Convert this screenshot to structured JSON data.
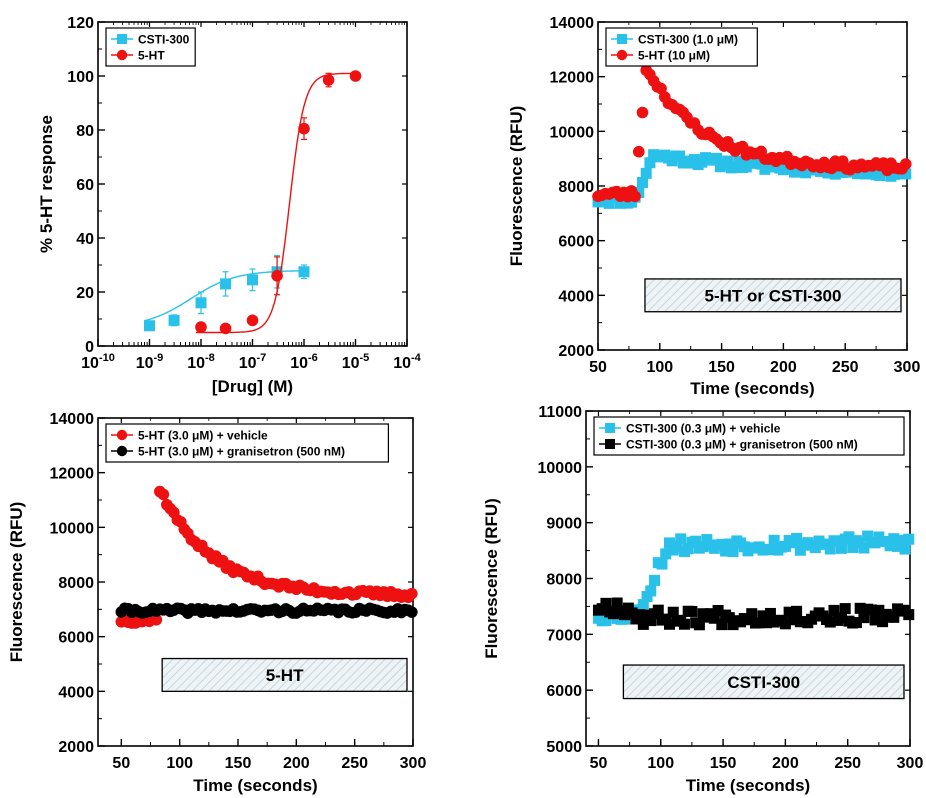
{
  "colors": {
    "cyan": "#29c1ea",
    "red": "#ee1111",
    "black": "#000000",
    "hatch": "#c9d6df"
  },
  "chart_data": [
    {
      "id": "A",
      "type": "scatter",
      "xscale": "log",
      "xlabel": "[Drug] (M)",
      "ylabel": "% 5-HT response",
      "xlim": [
        1e-10,
        0.0001
      ],
      "ylim": [
        0,
        120
      ],
      "xticks": [
        1e-10,
        1e-09,
        1e-08,
        1e-07,
        1e-06,
        1e-05,
        0.0001
      ],
      "xtick_labels": [
        {
          "base": "10",
          "exp": "-10"
        },
        {
          "base": "10",
          "exp": "-9"
        },
        {
          "base": "10",
          "exp": "-8"
        },
        {
          "base": "10",
          "exp": "-7"
        },
        {
          "base": "10",
          "exp": "-6"
        },
        {
          "base": "10",
          "exp": "-5"
        },
        {
          "base": "10",
          "exp": "-4"
        }
      ],
      "yticks": [
        0,
        20,
        40,
        60,
        80,
        100,
        120
      ],
      "ytick_labels": [
        "0",
        "20",
        "40",
        "60",
        "80",
        "100",
        "120"
      ],
      "legend_position": "top-left",
      "series": [
        {
          "name": "CSTI-300",
          "marker": "square",
          "color": "#29c1ea",
          "x": [
            1e-09,
            3e-09,
            1e-08,
            3e-08,
            1e-07,
            3e-07,
            1e-06
          ],
          "y": [
            7.5,
            9.5,
            16,
            23,
            24.5,
            27.5,
            27.5
          ],
          "err": [
            1.5,
            2,
            4,
            4.5,
            4,
            6,
            2.5
          ],
          "fit": {
            "bottom": 7,
            "top": 28,
            "logec50": -8.2,
            "hill": 1
          }
        },
        {
          "name": "5-HT",
          "marker": "circle",
          "color": "#ee1111",
          "x": [
            1e-08,
            3e-08,
            1e-07,
            3e-07,
            1e-06,
            3e-06,
            1e-05
          ],
          "y": [
            7,
            6.5,
            9.5,
            26,
            80.5,
            98.5,
            100
          ],
          "err": [
            0.8,
            0.8,
            1.5,
            7,
            4,
            2.5,
            0.8
          ],
          "fit": {
            "bottom": 5,
            "top": 101,
            "logec50": -6.28,
            "hill": 3
          }
        }
      ]
    },
    {
      "id": "B",
      "type": "scatter",
      "xlabel": "Time (seconds)",
      "ylabel": "Fluorescence (RFU)",
      "xlim": [
        50,
        300
      ],
      "ylim": [
        2000,
        14000
      ],
      "xticks": [
        50,
        100,
        150,
        200,
        250,
        300
      ],
      "xtick_labels": [
        "50",
        "100",
        "150",
        "200",
        "250",
        "300"
      ],
      "yticks": [
        2000,
        4000,
        6000,
        8000,
        10000,
        12000,
        14000
      ],
      "ytick_labels": [
        "2000",
        "4000",
        "6000",
        "8000",
        "10000",
        "12000",
        "14000"
      ],
      "legend_position": "top-left",
      "annotation": {
        "text": "5-HT or CSTI-300",
        "x_start": 88,
        "x_end": 300,
        "y_low": 3400,
        "y_high": 4600
      },
      "series": [
        {
          "name": "CSTI-300 (1.0 μM)",
          "marker": "square",
          "color": "#29c1ea",
          "trace": {
            "baseline": 7500,
            "onset": 80,
            "peak": 9100,
            "peak_time": 100,
            "plateau": 8350,
            "tau": 120,
            "noise": 160,
            "seed": 11
          }
        },
        {
          "name": "5-HT (10 μM)",
          "marker": "circle",
          "color": "#ee1111",
          "trace": {
            "baseline": 7700,
            "onset": 80,
            "peak": 12150,
            "peak_time": 92,
            "plateau": 8650,
            "tau": 45,
            "noise": 150,
            "seed": 23
          }
        }
      ]
    },
    {
      "id": "C",
      "type": "scatter",
      "xlabel": "Time (seconds)",
      "ylabel": "Fluorescence (RFU)",
      "xlim": [
        30,
        300
      ],
      "ylim": [
        2000,
        14000
      ],
      "xticks": [
        50,
        100,
        150,
        200,
        250,
        300
      ],
      "xtick_labels": [
        "50",
        "100",
        "150",
        "200",
        "250",
        "300"
      ],
      "yticks": [
        2000,
        4000,
        6000,
        8000,
        10000,
        12000,
        14000
      ],
      "ytick_labels": [
        "2000",
        "4000",
        "6000",
        "8000",
        "10000",
        "12000",
        "14000"
      ],
      "legend_position": "top-left",
      "annotation": {
        "text": "5-HT",
        "x_start": 85,
        "x_end": 300,
        "y_low": 4000,
        "y_high": 5200
      },
      "series": [
        {
          "name": "5-HT (3.0 μM) + vehicle",
          "marker": "circle",
          "color": "#ee1111",
          "trace": {
            "baseline": 6600,
            "onset": 80,
            "peak": 11400,
            "peak_time": 83,
            "plateau": 7500,
            "tau": 45,
            "noise": 110,
            "seed": 37
          }
        },
        {
          "name": "5-HT (3.0 μM) + granisetron (500 nM)",
          "marker": "circle",
          "color": "#000000",
          "trace": {
            "baseline": 6950,
            "onset": 300,
            "peak": 7050,
            "peak_time": 300,
            "plateau": 7050,
            "tau": 100,
            "noise": 90,
            "seed": 41
          }
        }
      ]
    },
    {
      "id": "D",
      "type": "scatter",
      "xlabel": "Time (seconds)",
      "ylabel": "Fluorescence (RFU)",
      "xlim": [
        40,
        300
      ],
      "ylim": [
        5000,
        11000
      ],
      "xticks": [
        50,
        100,
        150,
        200,
        250,
        300
      ],
      "xtick_labels": [
        "50",
        "100",
        "150",
        "200",
        "250",
        "300"
      ],
      "yticks": [
        5000,
        6000,
        7000,
        8000,
        9000,
        10000,
        11000
      ],
      "ytick_labels": [
        "5000",
        "6000",
        "7000",
        "8000",
        "9000",
        "10000",
        "11000"
      ],
      "legend_position": "top-left",
      "annotation": {
        "text": "CSTI-300",
        "x_start": 70,
        "x_end": 300,
        "y_low": 5850,
        "y_high": 6450
      },
      "series": [
        {
          "name": "CSTI-300 (0.3 μM) + vehicle",
          "marker": "square",
          "color": "#29c1ea",
          "trace": {
            "baseline": 7350,
            "onset": 82,
            "peak": 8600,
            "peak_time": 115,
            "plateau": 8700,
            "tau": 400,
            "noise": 130,
            "seed": 53
          }
        },
        {
          "name": "CSTI-300 (0.3 μM) + granisetron (500 nM)",
          "marker": "square",
          "color": "#000000",
          "trace": {
            "baseline": 7500,
            "onset": 70,
            "peak": 7300,
            "peak_time": 90,
            "plateau": 7370,
            "tau": 300,
            "noise": 140,
            "seed": 67
          }
        }
      ]
    }
  ]
}
